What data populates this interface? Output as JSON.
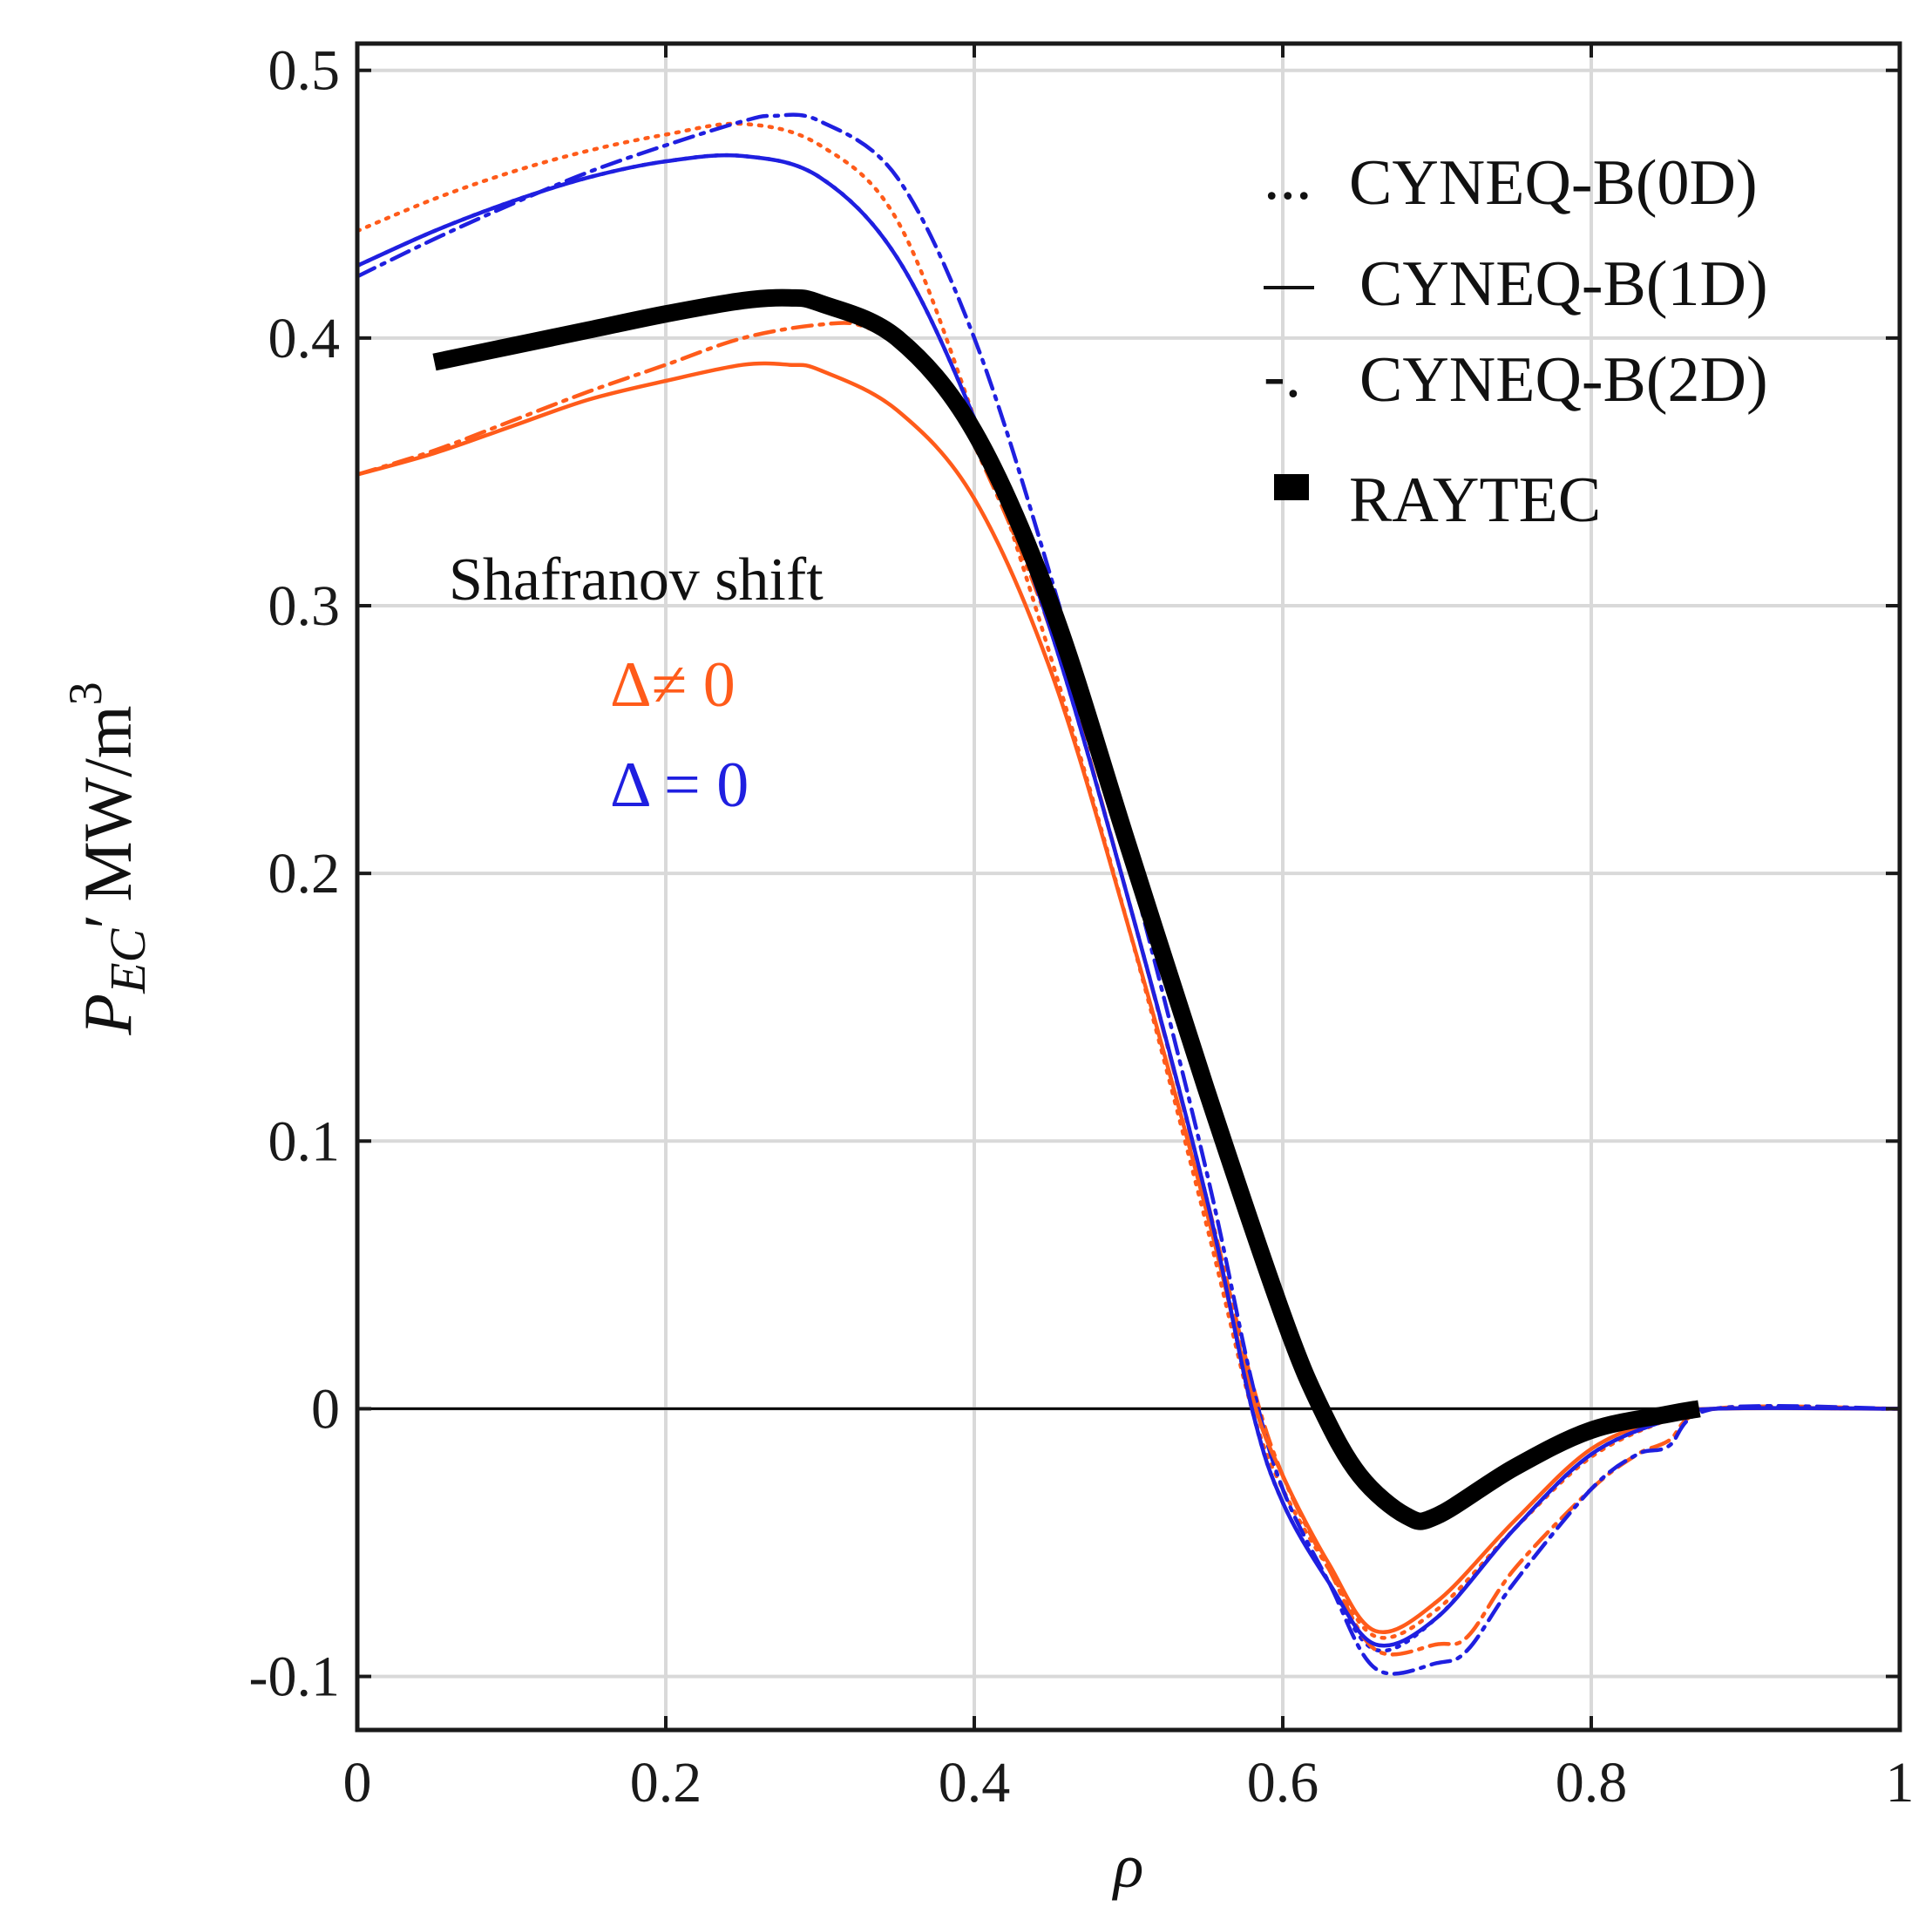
{
  "chart_data": {
    "type": "line",
    "title": "",
    "xlabel": "ρ",
    "ylabel": {
      "symbol": "P",
      "subscript": "EC",
      "prime": "′",
      "unit": "MW/m",
      "unit_exponent": "3"
    },
    "xlim": [
      0,
      1
    ],
    "ylim": [
      -0.12,
      0.51
    ],
    "x_ticks": [
      0,
      0.2,
      0.4,
      0.6,
      0.8,
      1
    ],
    "x_tick_labels": [
      "0",
      "0.2",
      "0.4",
      "0.6",
      "0.8",
      "1"
    ],
    "y_ticks": [
      -0.1,
      0,
      0.1,
      0.2,
      0.3,
      0.4,
      0.5
    ],
    "y_tick_labels": [
      "-0.1",
      "0",
      "0.1",
      "0.2",
      "0.3",
      "0.4",
      "0.5"
    ],
    "grid": true,
    "legend": {
      "position": "top-right",
      "entries": [
        {
          "marker": "...",
          "label": "CYNEQ-B(0D)",
          "style": "dotted"
        },
        {
          "marker": "—",
          "label": "CYNEQ-B(1D)",
          "style": "solid"
        },
        {
          "marker": "-.",
          "label": "CYNEQ-B(2D)",
          "style": "dashdot"
        },
        {
          "marker": "■",
          "label": "RAYTEC",
          "style": "thick"
        }
      ]
    },
    "annotations": {
      "title": "Shafranov shift",
      "shifted": {
        "text": "Δ≠ 0",
        "color": "#ff5b1a"
      },
      "unshifted": {
        "text": "Δ = 0",
        "color": "#1f1fe0"
      }
    },
    "colors": {
      "shifted": "#ff5b1a",
      "unshifted": "#1f1fe0",
      "raytec": "#000000",
      "zero_line": "#000000",
      "grid": "#d9d9d9"
    },
    "series": [
      {
        "name": "RAYTEC",
        "color": "#000000",
        "style": "thick",
        "points": [
          [
            0.05,
            0.391
          ],
          [
            0.1,
            0.397
          ],
          [
            0.15,
            0.403
          ],
          [
            0.2,
            0.409
          ],
          [
            0.25,
            0.414
          ],
          [
            0.28,
            0.415
          ],
          [
            0.3,
            0.413
          ],
          [
            0.35,
            0.4
          ],
          [
            0.4,
            0.365
          ],
          [
            0.45,
            0.3
          ],
          [
            0.5,
            0.21
          ],
          [
            0.55,
            0.12
          ],
          [
            0.6,
            0.035
          ],
          [
            0.625,
            0.0
          ],
          [
            0.65,
            -0.025
          ],
          [
            0.68,
            -0.04
          ],
          [
            0.7,
            -0.04
          ],
          [
            0.75,
            -0.022
          ],
          [
            0.8,
            -0.008
          ],
          [
            0.85,
            -0.002
          ],
          [
            0.87,
            0.0
          ]
        ]
      },
      {
        "name": "CYNEQ-B(0D) Δ≠0",
        "color": "#ff5b1a",
        "style": "dotted",
        "points": [
          [
            0,
            0.44
          ],
          [
            0.05,
            0.452
          ],
          [
            0.1,
            0.462
          ],
          [
            0.15,
            0.47
          ],
          [
            0.2,
            0.476
          ],
          [
            0.25,
            0.48
          ],
          [
            0.3,
            0.472
          ],
          [
            0.35,
            0.444
          ],
          [
            0.4,
            0.37
          ],
          [
            0.45,
            0.28
          ],
          [
            0.5,
            0.18
          ],
          [
            0.55,
            0.07
          ],
          [
            0.58,
            0.0
          ],
          [
            0.6,
            -0.03
          ],
          [
            0.63,
            -0.06
          ],
          [
            0.66,
            -0.085
          ],
          [
            0.7,
            -0.075
          ],
          [
            0.75,
            -0.045
          ],
          [
            0.8,
            -0.018
          ],
          [
            0.85,
            -0.004
          ],
          [
            0.88,
            0.0
          ],
          [
            1.0,
            0.0
          ]
        ]
      },
      {
        "name": "CYNEQ-B(1D) Δ≠0",
        "color": "#ff5b1a",
        "style": "solid",
        "points": [
          [
            0,
            0.349
          ],
          [
            0.05,
            0.357
          ],
          [
            0.1,
            0.367
          ],
          [
            0.15,
            0.377
          ],
          [
            0.2,
            0.384
          ],
          [
            0.25,
            0.39
          ],
          [
            0.28,
            0.39
          ],
          [
            0.3,
            0.388
          ],
          [
            0.35,
            0.373
          ],
          [
            0.4,
            0.34
          ],
          [
            0.45,
            0.275
          ],
          [
            0.5,
            0.18
          ],
          [
            0.55,
            0.075
          ],
          [
            0.58,
            0.005
          ],
          [
            0.6,
            -0.025
          ],
          [
            0.63,
            -0.058
          ],
          [
            0.66,
            -0.083
          ],
          [
            0.7,
            -0.072
          ],
          [
            0.75,
            -0.042
          ],
          [
            0.8,
            -0.015
          ],
          [
            0.85,
            -0.003
          ],
          [
            0.88,
            0.0
          ],
          [
            1.0,
            0.0
          ]
        ]
      },
      {
        "name": "CYNEQ-B(2D) Δ≠0",
        "color": "#ff5b1a",
        "style": "dashdot",
        "points": [
          [
            0,
            0.349
          ],
          [
            0.05,
            0.358
          ],
          [
            0.1,
            0.369
          ],
          [
            0.15,
            0.38
          ],
          [
            0.2,
            0.39
          ],
          [
            0.25,
            0.4
          ],
          [
            0.3,
            0.405
          ],
          [
            0.33,
            0.404
          ],
          [
            0.37,
            0.39
          ],
          [
            0.4,
            0.36
          ],
          [
            0.45,
            0.29
          ],
          [
            0.5,
            0.19
          ],
          [
            0.55,
            0.08
          ],
          [
            0.58,
            0.01
          ],
          [
            0.6,
            -0.025
          ],
          [
            0.63,
            -0.06
          ],
          [
            0.66,
            -0.09
          ],
          [
            0.7,
            -0.088
          ],
          [
            0.72,
            -0.085
          ],
          [
            0.75,
            -0.06
          ],
          [
            0.8,
            -0.03
          ],
          [
            0.83,
            -0.017
          ],
          [
            0.85,
            -0.012
          ],
          [
            0.88,
            0.0
          ],
          [
            1.0,
            0.0
          ]
        ]
      },
      {
        "name": "CYNEQ-B(0D) Δ=0",
        "color": "#1f1fe0",
        "style": "dotted",
        "points": [
          [
            0,
            0.427
          ],
          [
            0.05,
            0.44
          ],
          [
            0.1,
            0.451
          ],
          [
            0.15,
            0.46
          ],
          [
            0.2,
            0.466
          ],
          [
            0.25,
            0.468
          ],
          [
            0.3,
            0.46
          ],
          [
            0.35,
            0.43
          ],
          [
            0.4,
            0.37
          ],
          [
            0.45,
            0.29
          ],
          [
            0.5,
            0.19
          ],
          [
            0.55,
            0.08
          ],
          [
            0.58,
            0.0
          ],
          [
            0.6,
            -0.035
          ],
          [
            0.63,
            -0.065
          ],
          [
            0.66,
            -0.09
          ],
          [
            0.7,
            -0.078
          ],
          [
            0.75,
            -0.045
          ],
          [
            0.8,
            -0.017
          ],
          [
            0.85,
            -0.004
          ],
          [
            0.88,
            0.0
          ],
          [
            1.0,
            0.0
          ]
        ]
      },
      {
        "name": "CYNEQ-B(1D) Δ=0",
        "color": "#1f1fe0",
        "style": "solid",
        "points": [
          [
            0,
            0.427
          ],
          [
            0.05,
            0.44
          ],
          [
            0.1,
            0.451
          ],
          [
            0.15,
            0.46
          ],
          [
            0.2,
            0.466
          ],
          [
            0.25,
            0.468
          ],
          [
            0.3,
            0.46
          ],
          [
            0.35,
            0.43
          ],
          [
            0.4,
            0.37
          ],
          [
            0.45,
            0.29
          ],
          [
            0.5,
            0.19
          ],
          [
            0.55,
            0.08
          ],
          [
            0.58,
            0.0
          ],
          [
            0.6,
            -0.035
          ],
          [
            0.63,
            -0.065
          ],
          [
            0.66,
            -0.088
          ],
          [
            0.7,
            -0.078
          ],
          [
            0.75,
            -0.045
          ],
          [
            0.8,
            -0.017
          ],
          [
            0.85,
            -0.004
          ],
          [
            0.88,
            0.0
          ],
          [
            1.0,
            0.0
          ]
        ]
      },
      {
        "name": "CYNEQ-B(2D) Δ=0",
        "color": "#1f1fe0",
        "style": "dashdot",
        "points": [
          [
            0,
            0.423
          ],
          [
            0.05,
            0.437
          ],
          [
            0.1,
            0.45
          ],
          [
            0.15,
            0.462
          ],
          [
            0.2,
            0.472
          ],
          [
            0.25,
            0.481
          ],
          [
            0.27,
            0.483
          ],
          [
            0.3,
            0.481
          ],
          [
            0.35,
            0.46
          ],
          [
            0.4,
            0.4
          ],
          [
            0.45,
            0.31
          ],
          [
            0.5,
            0.205
          ],
          [
            0.55,
            0.09
          ],
          [
            0.58,
            0.01
          ],
          [
            0.6,
            -0.03
          ],
          [
            0.63,
            -0.065
          ],
          [
            0.66,
            -0.097
          ],
          [
            0.7,
            -0.095
          ],
          [
            0.72,
            -0.09
          ],
          [
            0.75,
            -0.065
          ],
          [
            0.8,
            -0.03
          ],
          [
            0.83,
            -0.017
          ],
          [
            0.85,
            -0.014
          ],
          [
            0.88,
            0.0
          ],
          [
            1.0,
            0.0
          ]
        ]
      }
    ]
  }
}
